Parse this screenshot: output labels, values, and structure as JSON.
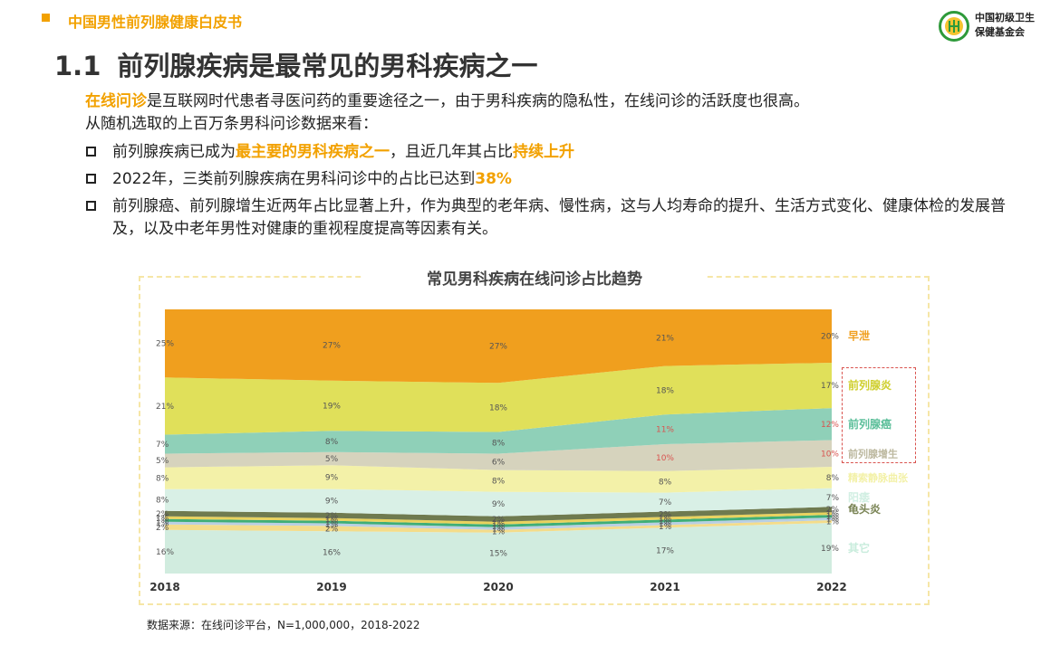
{
  "header": {
    "doc_title": "中国男性前列腺健康白皮书"
  },
  "logo": {
    "line1": "中国初级卫生",
    "line2": "保健基金会",
    "color": "#2e9a3a"
  },
  "page_title": {
    "number": "1.1",
    "text": "前列腺疾病是最常见的男科疾病之一"
  },
  "intro": {
    "line1_highlight": "在线问诊",
    "line1_rest": "是互联网时代患者寻医问药的重要途径之一，由于男科疾病的隐私性，在线问诊的活跃度也很高。",
    "line2": "从随机选取的上百万条男科问诊数据来看："
  },
  "bullets": [
    {
      "pre": "前列腺疾病已成为",
      "hl1": "最主要的男科疾病之一",
      "mid": "，且近几年其占比",
      "hl2": "持续上升",
      "post": ""
    },
    {
      "pre": "2022年，三类前列腺疾病在男科问诊中的占比已达到",
      "hl1": "38%",
      "mid": "",
      "hl2": "",
      "post": ""
    },
    {
      "pre": "前列腺癌、前列腺增生近两年占比显著上升，作为典型的老年病、慢性病，这与人均寿命的提升、生活方式变化、健康体检的发展普及，以及中老年男性对健康的重视程度提高等因素有关。",
      "hl1": "",
      "mid": "",
      "hl2": "",
      "post": ""
    }
  ],
  "accent_color": "#f2a100",
  "chart_data": {
    "type": "area",
    "stacked": true,
    "title": "常见男科疾病在线问诊占比趋势",
    "x": [
      "2018",
      "2019",
      "2020",
      "2021",
      "2022"
    ],
    "ylim": [
      0,
      100
    ],
    "grid": false,
    "legend_placement": "right",
    "series": [
      {
        "name": "其它",
        "values": [
          16,
          16,
          15,
          17,
          19
        ],
        "labels": [
          "16%",
          "16%",
          "15%",
          "17%",
          "19%"
        ],
        "color": "#d1ecdf",
        "label_color": "#c8ecdc",
        "show": true
      },
      {
        "name": "",
        "values": [
          2,
          2,
          1,
          1,
          1
        ],
        "labels": [
          "2%",
          "2%",
          "1%",
          "1%",
          "1%"
        ],
        "color": "#f4dc8a",
        "label_color": "#f4dc8a",
        "show": true
      },
      {
        "name": "",
        "values": [
          1,
          1,
          1,
          1,
          1
        ],
        "labels": [
          "1%",
          "1%",
          "1%",
          "1%",
          "1%"
        ],
        "color": "#b9cfe3",
        "label_color": "#b9cfe3",
        "show": true
      },
      {
        "name": "",
        "values": [
          1,
          1,
          1,
          1,
          1
        ],
        "labels": [
          "1%",
          "1%",
          "1%",
          "1%",
          "1%"
        ],
        "color": "#3fae77",
        "label_color": "#3fae77",
        "show": true
      },
      {
        "name": "",
        "values": [
          1,
          1,
          1,
          1,
          1
        ],
        "labels": [
          "1%",
          "1%",
          "1%",
          "1%",
          "1%"
        ],
        "color": "#e9d25e",
        "label_color": "#e9d25e",
        "show": true
      },
      {
        "name": "龟头炎",
        "values": [
          2,
          2,
          2,
          2,
          2
        ],
        "labels": [
          "2%",
          "2%",
          "2%",
          "2%",
          "2%"
        ],
        "color": "#6f7a4f",
        "label_color": "#7a8455",
        "show": true
      },
      {
        "name": "阳痿",
        "values": [
          8,
          9,
          9,
          7,
          7
        ],
        "labels": [
          "8%",
          "9%",
          "9%",
          "7%",
          "7%"
        ],
        "color": "#d9f0e6",
        "label_color": "#d2efe3",
        "show": true
      },
      {
        "name": "精索静脉曲张",
        "values": [
          8,
          9,
          8,
          8,
          8
        ],
        "labels": [
          "8%",
          "9%",
          "8%",
          "8%",
          "8%"
        ],
        "color": "#f3f1a8",
        "label_color": "#f3f1a8",
        "show": true
      },
      {
        "name": "前列腺增生",
        "values": [
          5,
          5,
          6,
          10,
          10
        ],
        "labels": [
          "5%",
          "5%",
          "6%",
          "10%",
          "10%"
        ],
        "color": "#d6d3bd",
        "label_color": "#bdb9a0",
        "show": true
      },
      {
        "name": "前列腺癌",
        "values": [
          7,
          8,
          8,
          11,
          12
        ],
        "labels": [
          "7%",
          "8%",
          "8%",
          "11%",
          "12%"
        ],
        "color": "#8fd0b8",
        "label_color": "#5cbf9a",
        "show": true
      },
      {
        "name": "前列腺炎",
        "values": [
          21,
          19,
          18,
          18,
          17
        ],
        "labels": [
          "21%",
          "19%",
          "18%",
          "18%",
          "17%"
        ],
        "color": "#e0e05a",
        "label_color": "#cfcf2e",
        "show": true
      },
      {
        "name": "早泄",
        "values": [
          25,
          27,
          27,
          21,
          20
        ],
        "labels": [
          "25%",
          "27%",
          "27%",
          "21%",
          "20%"
        ],
        "color": "#f09f1e",
        "label_color": "#f09f1e",
        "show": true
      }
    ],
    "highlight_label_color": "#d9534f",
    "highlighted_points": [
      [
        8,
        3
      ],
      [
        8,
        4
      ],
      [
        9,
        3
      ],
      [
        9,
        4
      ]
    ]
  },
  "source": "数据来源：在线问诊平台，N=1,000,000，2018-2022"
}
